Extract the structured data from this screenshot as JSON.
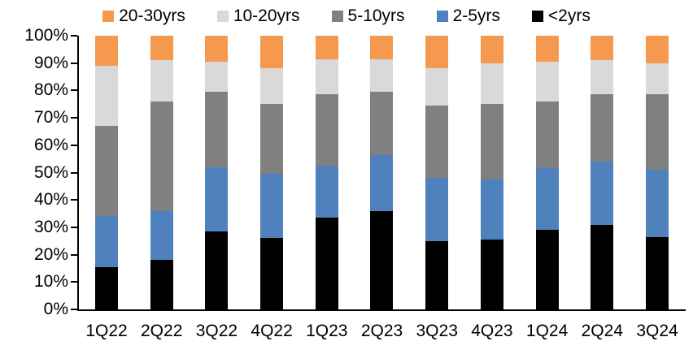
{
  "chart_data": {
    "type": "bar",
    "subtype": "stacked-100-percent",
    "title": "",
    "xlabel": "",
    "ylabel": "",
    "ylim": [
      0,
      100
    ],
    "grid": false,
    "legend_position": "top",
    "y_tick_labels": [
      "100%",
      "90%",
      "80%",
      "70%",
      "60%",
      "50%",
      "40%",
      "30%",
      "20%",
      "10%",
      "0%"
    ],
    "categories": [
      "1Q22",
      "2Q22",
      "3Q22",
      "4Q22",
      "1Q23",
      "2Q23",
      "3Q23",
      "4Q23",
      "1Q24",
      "2Q24",
      "3Q24"
    ],
    "series": [
      {
        "name": "<2yrs",
        "key": "under-2yrs",
        "color": "#000000",
        "values": [
          15.5,
          18,
          28.5,
          26,
          33.5,
          36,
          25,
          25.5,
          29,
          31,
          26.5
        ]
      },
      {
        "name": "2-5yrs",
        "key": "2-5yrs",
        "color": "#4F81BD",
        "values": [
          18.5,
          18,
          23.5,
          23.5,
          19,
          20.5,
          23,
          22,
          22.5,
          23,
          24.5
        ]
      },
      {
        "name": "5-10yrs",
        "key": "5-10yrs",
        "color": "#808080",
        "values": [
          33,
          40,
          27.5,
          25.5,
          26,
          23,
          26.5,
          27.5,
          24.5,
          24.5,
          27.5
        ]
      },
      {
        "name": "10-20yrs",
        "key": "10-20yrs",
        "color": "#D9D9D9",
        "values": [
          22,
          15,
          11,
          13,
          13,
          12,
          13.5,
          15,
          14.5,
          12.5,
          11.5
        ]
      },
      {
        "name": "20-30yrs",
        "key": "20-30yrs",
        "color": "#F4994D",
        "values": [
          11,
          9,
          9.5,
          12,
          8.5,
          8.5,
          12,
          10,
          9.5,
          9,
          10
        ]
      }
    ],
    "legend": [
      {
        "label": "20-30yrs",
        "color": "#F4994D"
      },
      {
        "label": "10-20yrs",
        "color": "#D9D9D9"
      },
      {
        "label": "5-10yrs",
        "color": "#808080"
      },
      {
        "label": "2-5yrs",
        "color": "#4F81BD"
      },
      {
        "label": "<2yrs",
        "color": "#000000"
      }
    ]
  }
}
